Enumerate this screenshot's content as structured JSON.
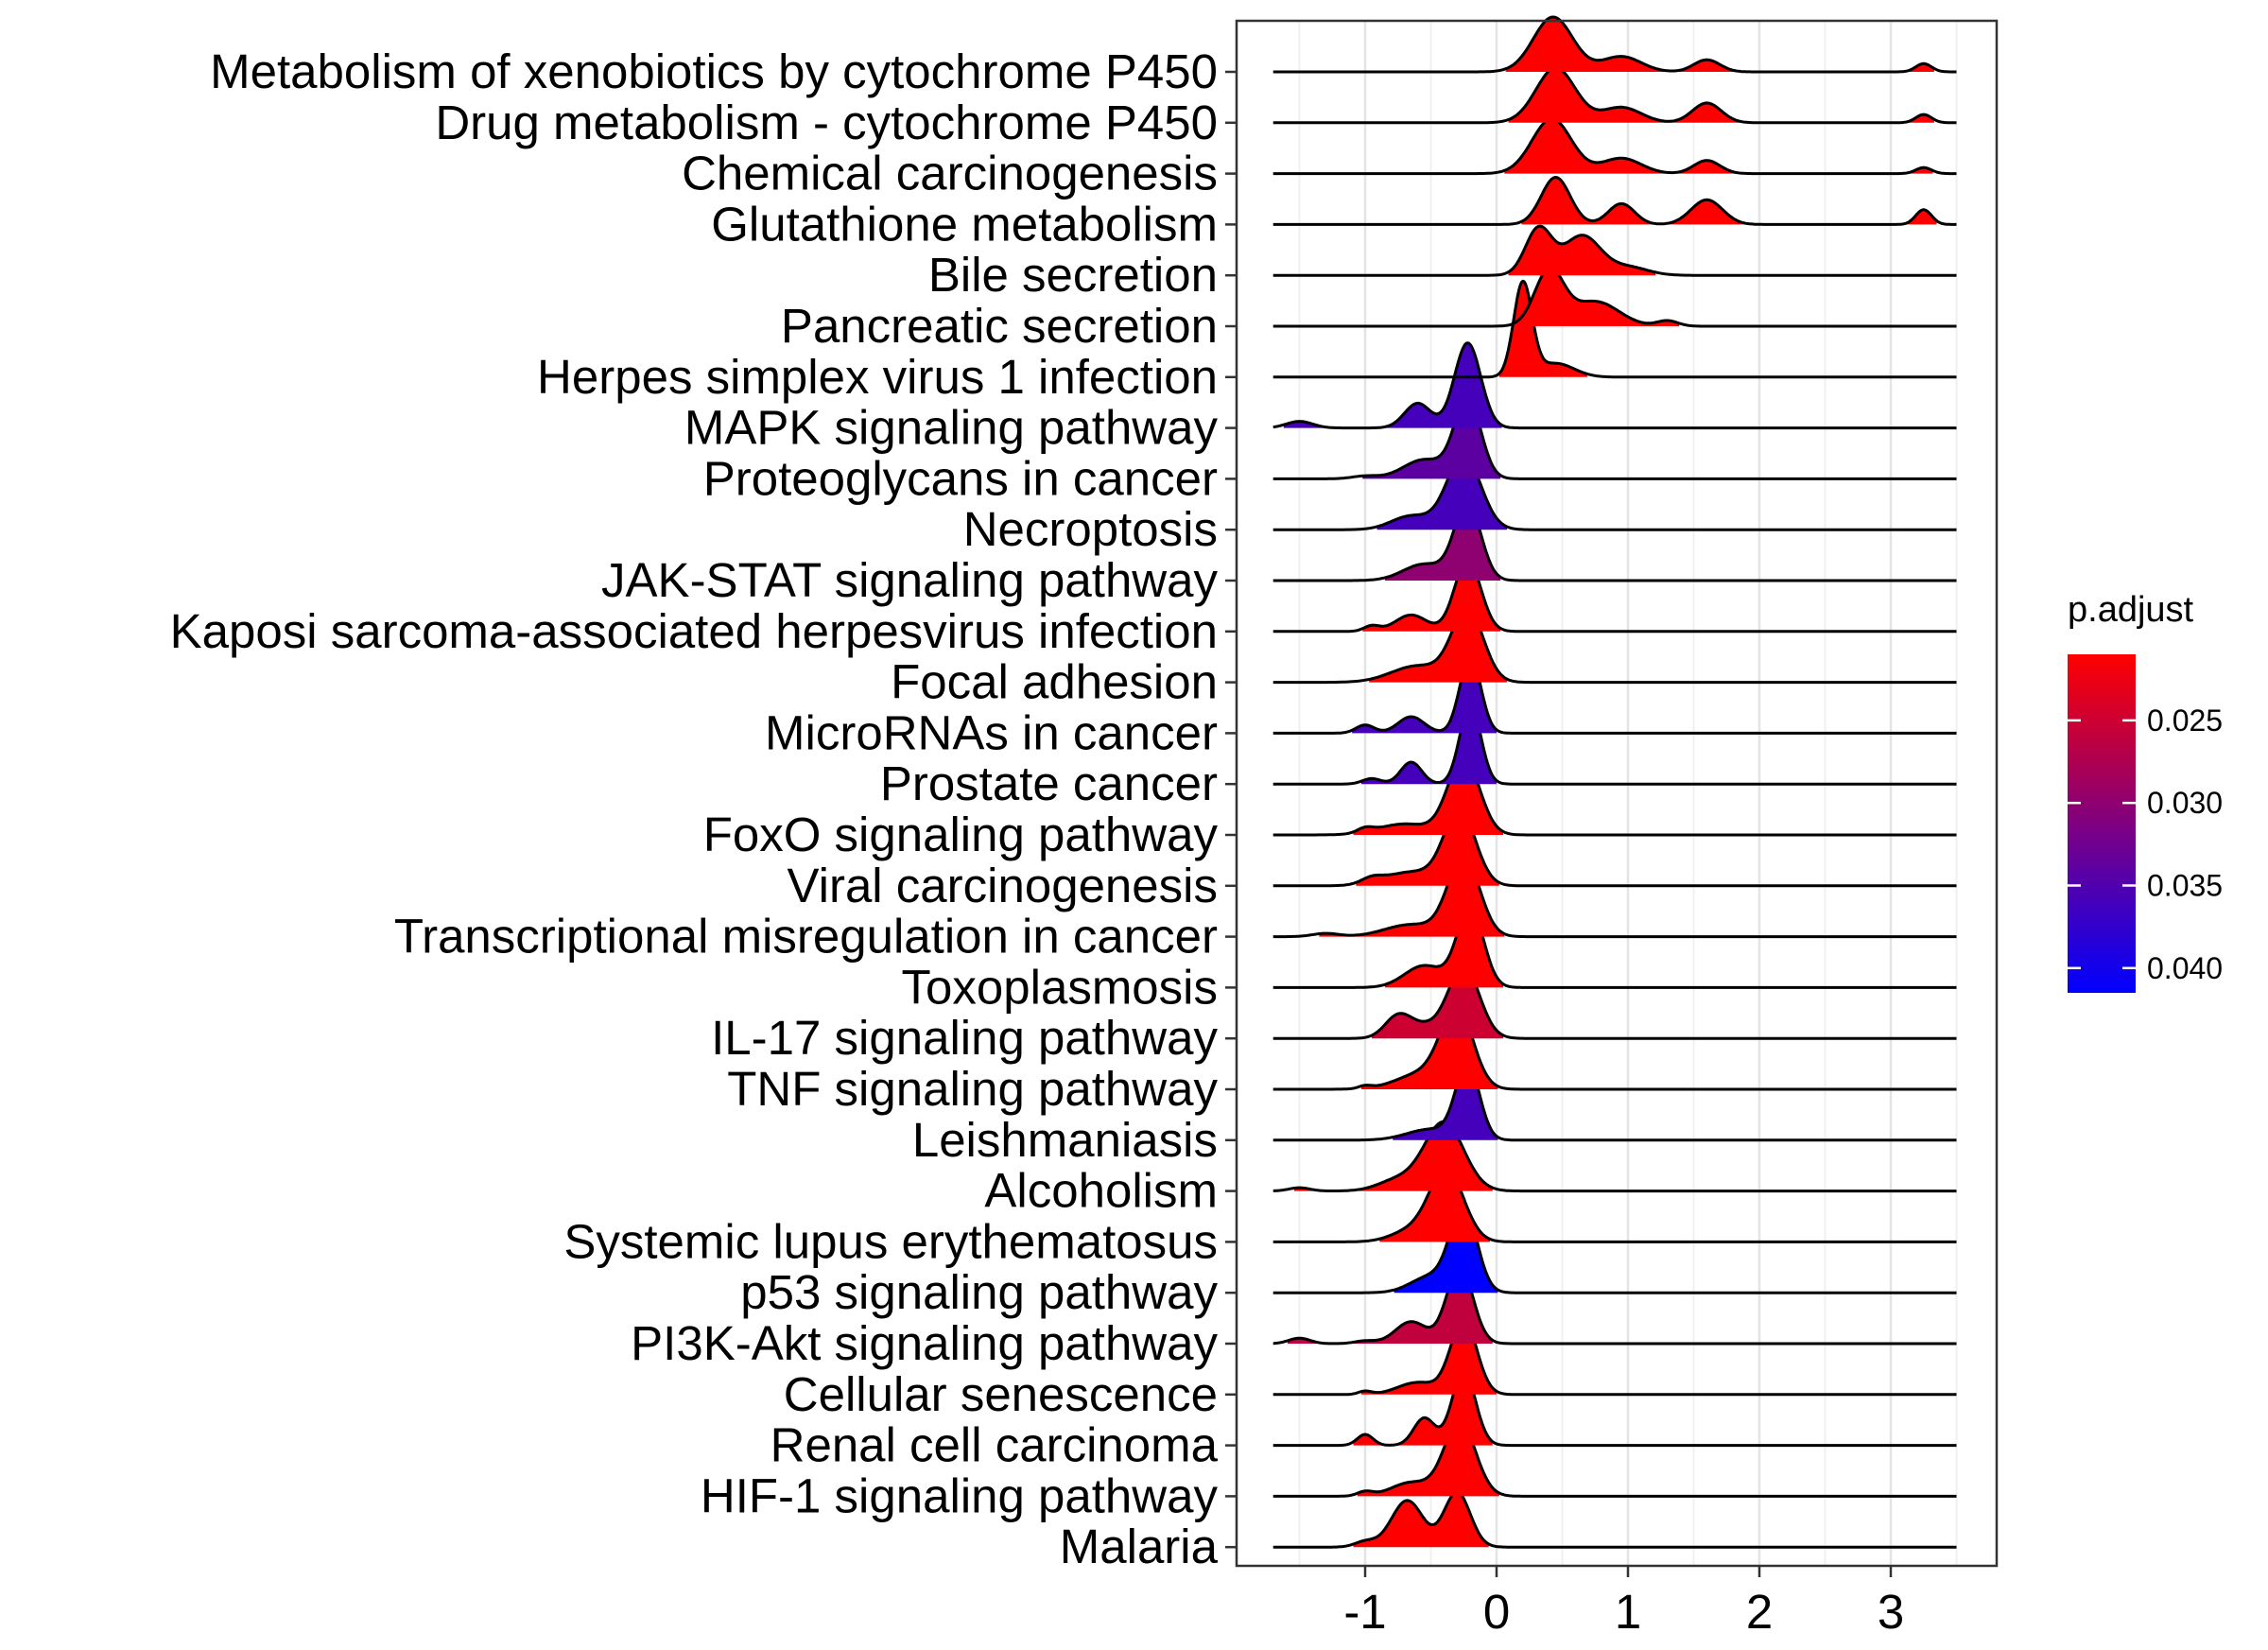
{
  "chart_data": {
    "type": "ridgeline",
    "xlim": [
      -1.7,
      3.5
    ],
    "x_ticks": [
      -1,
      0,
      1,
      2,
      3
    ],
    "x_tick_labels": [
      "-1",
      "0",
      "1",
      "2",
      "3"
    ],
    "grid": true,
    "legend": {
      "title": "p.adjust",
      "placement": "right",
      "gradient_low_value": 0.0415,
      "gradient_high_value": 0.021,
      "gradient_low_color": "#0000ff",
      "gradient_high_color": "#ff0000",
      "ticks": [
        0.025,
        0.03,
        0.035,
        0.04
      ],
      "tick_labels": [
        "0.025",
        "0.030",
        "0.035",
        "0.040"
      ]
    },
    "series": [
      {
        "name": "Metabolism of xenobiotics by cytochrome P450",
        "p_adjust": 0.021,
        "peaks": [
          [
            0.43,
            0.15,
            1.0
          ],
          [
            0.95,
            0.15,
            0.28
          ],
          [
            1.6,
            0.1,
            0.22
          ],
          [
            3.25,
            0.06,
            0.15
          ]
        ]
      },
      {
        "name": "Drug metabolism - cytochrome P450",
        "p_adjust": 0.021,
        "peaks": [
          [
            0.45,
            0.15,
            1.0
          ],
          [
            0.95,
            0.15,
            0.28
          ],
          [
            1.6,
            0.11,
            0.36
          ],
          [
            3.25,
            0.06,
            0.15
          ]
        ]
      },
      {
        "name": "Chemical carcinogenesis",
        "p_adjust": 0.021,
        "peaks": [
          [
            0.42,
            0.15,
            1.0
          ],
          [
            0.95,
            0.15,
            0.28
          ],
          [
            1.6,
            0.1,
            0.24
          ],
          [
            3.25,
            0.06,
            0.11
          ]
        ]
      },
      {
        "name": "Glutathione metabolism",
        "p_adjust": 0.021,
        "peaks": [
          [
            0.45,
            0.11,
            0.86
          ],
          [
            0.95,
            0.1,
            0.38
          ],
          [
            1.6,
            0.12,
            0.45
          ],
          [
            3.25,
            0.06,
            0.27
          ]
        ]
      },
      {
        "name": "Bile secretion",
        "p_adjust": 0.021,
        "peaks": [
          [
            0.32,
            0.1,
            0.85
          ],
          [
            0.65,
            0.14,
            0.72
          ],
          [
            1.0,
            0.15,
            0.15
          ]
        ]
      },
      {
        "name": "Pancreatic secretion",
        "p_adjust": 0.021,
        "peaks": [
          [
            0.4,
            0.11,
            1.0
          ],
          [
            0.75,
            0.18,
            0.45
          ],
          [
            1.3,
            0.08,
            0.1
          ]
        ]
      },
      {
        "name": "Herpes simplex virus 1 infection",
        "p_adjust": 0.021,
        "peaks": [
          [
            0.2,
            0.07,
            1.7
          ],
          [
            0.45,
            0.14,
            0.25
          ]
        ]
      },
      {
        "name": "MAPK signaling pathway",
        "p_adjust": 0.036,
        "peaks": [
          [
            -0.22,
            0.1,
            1.55
          ],
          [
            -0.6,
            0.1,
            0.45
          ],
          [
            -1.5,
            0.1,
            0.12
          ]
        ]
      },
      {
        "name": "Proteoglycans in cancer",
        "p_adjust": 0.034,
        "peaks": [
          [
            -0.22,
            0.1,
            1.45
          ],
          [
            -0.55,
            0.16,
            0.35
          ],
          [
            -1.0,
            0.1,
            0.05
          ]
        ]
      },
      {
        "name": "Necroptosis",
        "p_adjust": 0.036,
        "peaks": [
          [
            -0.25,
            0.13,
            1.35
          ],
          [
            -0.65,
            0.15,
            0.25
          ]
        ]
      },
      {
        "name": "JAK-STAT signaling pathway",
        "p_adjust": 0.03,
        "peaks": [
          [
            -0.22,
            0.1,
            1.4
          ],
          [
            -0.55,
            0.16,
            0.3
          ]
        ]
      },
      {
        "name": "Kaposi sarcoma-associated herpesvirus infection",
        "p_adjust": 0.021,
        "peaks": [
          [
            -0.22,
            0.1,
            1.3
          ],
          [
            -0.65,
            0.12,
            0.3
          ],
          [
            -0.95,
            0.06,
            0.1
          ]
        ]
      },
      {
        "name": "Focal adhesion",
        "p_adjust": 0.021,
        "peaks": [
          [
            -0.22,
            0.12,
            1.3
          ],
          [
            -0.6,
            0.2,
            0.3
          ]
        ]
      },
      {
        "name": "MicroRNAs in cancer",
        "p_adjust": 0.036,
        "peaks": [
          [
            -0.2,
            0.08,
            1.4
          ],
          [
            -0.65,
            0.1,
            0.3
          ],
          [
            -1.0,
            0.07,
            0.15
          ]
        ]
      },
      {
        "name": "Prostate cancer",
        "p_adjust": 0.036,
        "peaks": [
          [
            -0.2,
            0.08,
            1.45
          ],
          [
            -0.65,
            0.08,
            0.4
          ],
          [
            -0.95,
            0.07,
            0.1
          ]
        ]
      },
      {
        "name": "FoxO signaling pathway",
        "p_adjust": 0.021,
        "peaks": [
          [
            -0.25,
            0.12,
            1.4
          ],
          [
            -0.7,
            0.2,
            0.2
          ],
          [
            -1.0,
            0.06,
            0.08
          ]
        ]
      },
      {
        "name": "Viral carcinogenesis",
        "p_adjust": 0.021,
        "peaks": [
          [
            -0.28,
            0.12,
            1.35
          ],
          [
            -0.65,
            0.2,
            0.25
          ],
          [
            -0.95,
            0.08,
            0.1
          ]
        ]
      },
      {
        "name": "Transcriptional misregulation in cancer",
        "p_adjust": 0.021,
        "peaks": [
          [
            -0.25,
            0.12,
            1.45
          ],
          [
            -0.65,
            0.2,
            0.22
          ],
          [
            -1.3,
            0.1,
            0.06
          ]
        ]
      },
      {
        "name": "Toxoplasmosis",
        "p_adjust": 0.021,
        "peaks": [
          [
            -0.2,
            0.1,
            1.45
          ],
          [
            -0.55,
            0.15,
            0.4
          ]
        ]
      },
      {
        "name": "IL-17 signaling pathway",
        "p_adjust": 0.025,
        "peaks": [
          [
            -0.25,
            0.12,
            1.3
          ],
          [
            -0.75,
            0.1,
            0.4
          ],
          [
            -0.55,
            0.12,
            0.2
          ]
        ]
      },
      {
        "name": "TNF signaling pathway",
        "p_adjust": 0.021,
        "peaks": [
          [
            -0.3,
            0.12,
            1.4
          ],
          [
            -0.55,
            0.2,
            0.3
          ],
          [
            -1.0,
            0.05,
            0.05
          ]
        ]
      },
      {
        "name": "Leishmaniasis",
        "p_adjust": 0.036,
        "peaks": [
          [
            -0.22,
            0.09,
            1.35
          ],
          [
            -0.5,
            0.18,
            0.2
          ]
        ]
      },
      {
        "name": "Alcoholism",
        "p_adjust": 0.021,
        "peaks": [
          [
            -0.4,
            0.15,
            1.25
          ],
          [
            -0.75,
            0.15,
            0.2
          ],
          [
            -1.5,
            0.08,
            0.06
          ]
        ]
      },
      {
        "name": "Systemic lupus erythematosus",
        "p_adjust": 0.021,
        "peaks": [
          [
            -0.38,
            0.13,
            1.3
          ],
          [
            -0.65,
            0.15,
            0.2
          ]
        ]
      },
      {
        "name": "p53 signaling pathway",
        "p_adjust": 0.0415,
        "peaks": [
          [
            -0.25,
            0.1,
            1.55
          ],
          [
            -0.5,
            0.15,
            0.3
          ]
        ]
      },
      {
        "name": "PI3K-Akt signaling pathway",
        "p_adjust": 0.026,
        "peaks": [
          [
            -0.28,
            0.1,
            1.4
          ],
          [
            -0.65,
            0.12,
            0.4
          ],
          [
            -1.5,
            0.08,
            0.1
          ],
          [
            -1.0,
            0.08,
            0.05
          ]
        ]
      },
      {
        "name": "Cellular senescence",
        "p_adjust": 0.021,
        "peaks": [
          [
            -0.25,
            0.1,
            1.35
          ],
          [
            -0.6,
            0.15,
            0.22
          ],
          [
            -1.0,
            0.05,
            0.06
          ]
        ]
      },
      {
        "name": "Renal cell carcinoma",
        "p_adjust": 0.021,
        "peaks": [
          [
            -0.25,
            0.09,
            1.35
          ],
          [
            -0.55,
            0.08,
            0.5
          ],
          [
            -1.0,
            0.06,
            0.2
          ]
        ]
      },
      {
        "name": "HIF-1 signaling pathway",
        "p_adjust": 0.021,
        "peaks": [
          [
            -0.28,
            0.12,
            1.35
          ],
          [
            -0.65,
            0.15,
            0.25
          ],
          [
            -1.0,
            0.06,
            0.08
          ]
        ]
      },
      {
        "name": "Malaria",
        "p_adjust": 0.021,
        "peaks": [
          [
            -0.3,
            0.1,
            1.0
          ],
          [
            -0.68,
            0.12,
            0.85
          ],
          [
            -1.0,
            0.08,
            0.1
          ]
        ]
      }
    ]
  }
}
